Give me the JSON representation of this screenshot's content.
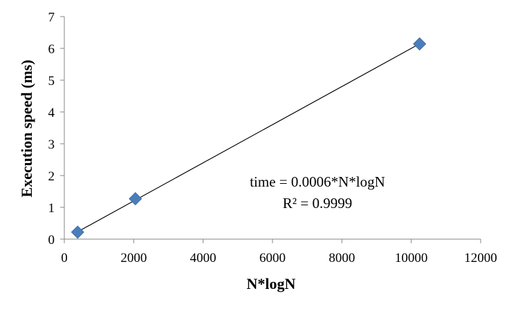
{
  "chart_data": {
    "type": "scatter",
    "title": "",
    "xlabel": "N*logN",
    "ylabel": "Execution speed (ms)",
    "xlim": [
      0,
      12000
    ],
    "ylim": [
      0,
      7
    ],
    "x_ticks": [
      0,
      2000,
      4000,
      6000,
      8000,
      10000,
      12000
    ],
    "y_ticks": [
      0,
      1,
      2,
      3,
      4,
      5,
      6,
      7
    ],
    "grid": false,
    "legend": "none",
    "series": [
      {
        "x": [
          384,
          2048,
          10240
        ],
        "y": [
          0.22,
          1.27,
          6.14
        ],
        "marker": "diamond",
        "color": "#4a7ebb"
      }
    ],
    "trendline": {
      "type": "linear",
      "x_range": [
        384,
        10240
      ],
      "slope": 0.0006,
      "intercept": 0,
      "color": "#000000"
    },
    "annotations": [
      "time = 0.0006*N*logN",
      "R² = 0.9999"
    ]
  }
}
